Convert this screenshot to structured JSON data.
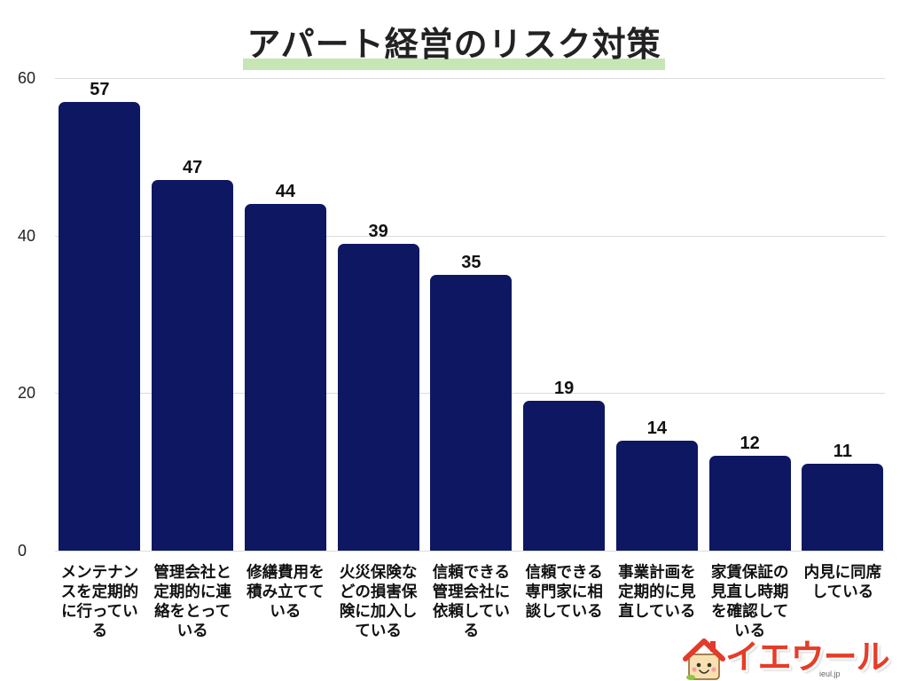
{
  "colors": {
    "bar": "#0e1761",
    "title_highlight": "#c7e5b5",
    "grid": "#dcdcdc",
    "logo_text": "#e53d29"
  },
  "logo": {
    "icon": "house-icon",
    "text": "イエウール",
    "domain": "ieul.jp"
  },
  "chart_data": {
    "type": "bar",
    "title": "アパート経営のリスク対策",
    "categories": [
      "メンテナンスを定期的に行っている",
      "管理会社と定期的に連絡をとっている",
      "修繕費用を積み立てている",
      "火災保険などの損害保険に加入している",
      "信頼できる管理会社に依頼している",
      "信頼できる専門家に相談している",
      "事業計画を定期的に見直している",
      "家賃保証の見直し時期を確認している",
      "内見に同席している"
    ],
    "values": [
      57,
      47,
      44,
      39,
      35,
      19,
      14,
      12,
      11
    ],
    "ylim": [
      0,
      60
    ],
    "yticks": [
      0,
      20,
      40,
      60
    ],
    "grid": true,
    "legend": "none",
    "data_labels": true
  }
}
